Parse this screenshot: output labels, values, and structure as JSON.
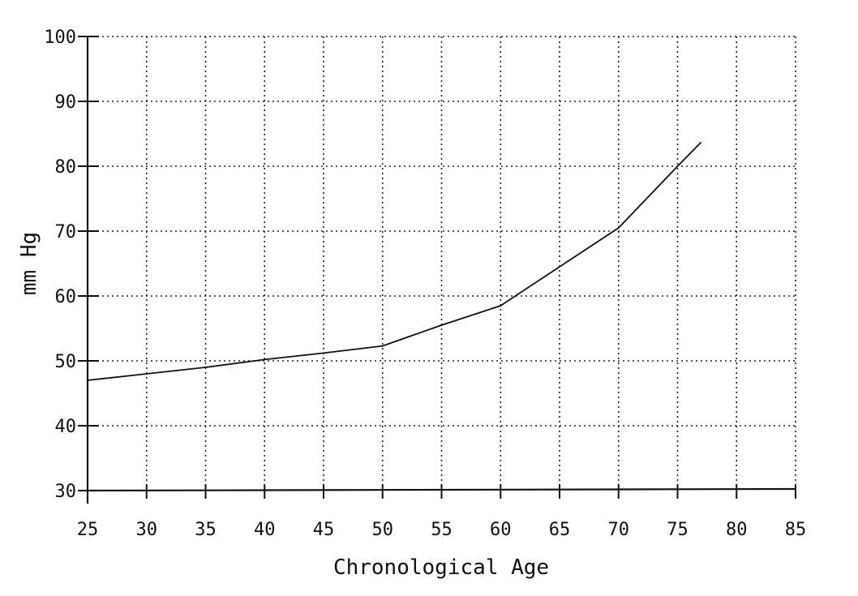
{
  "chart_data": {
    "type": "line",
    "title": "",
    "xlabel": "Chronological Age",
    "ylabel": "mm Hg",
    "xlim": [
      25,
      85
    ],
    "ylim": [
      30,
      100
    ],
    "x_ticks": [
      25,
      30,
      35,
      40,
      45,
      50,
      55,
      60,
      65,
      70,
      75,
      80,
      85
    ],
    "y_ticks": [
      30,
      40,
      50,
      60,
      70,
      80,
      90,
      100
    ],
    "grid": true,
    "grid_style": "dotted",
    "series": [
      {
        "x": [
          25,
          30,
          35,
          40,
          45,
          50,
          55,
          60,
          65,
          70,
          75,
          77
        ],
        "y": [
          47,
          48,
          49,
          50.2,
          51.2,
          52.3,
          55.5,
          58.5,
          64.5,
          70.5,
          80,
          83.7
        ]
      }
    ],
    "colors": {
      "line": "#111111",
      "grid": "#222222",
      "background": "#ffffff"
    }
  }
}
